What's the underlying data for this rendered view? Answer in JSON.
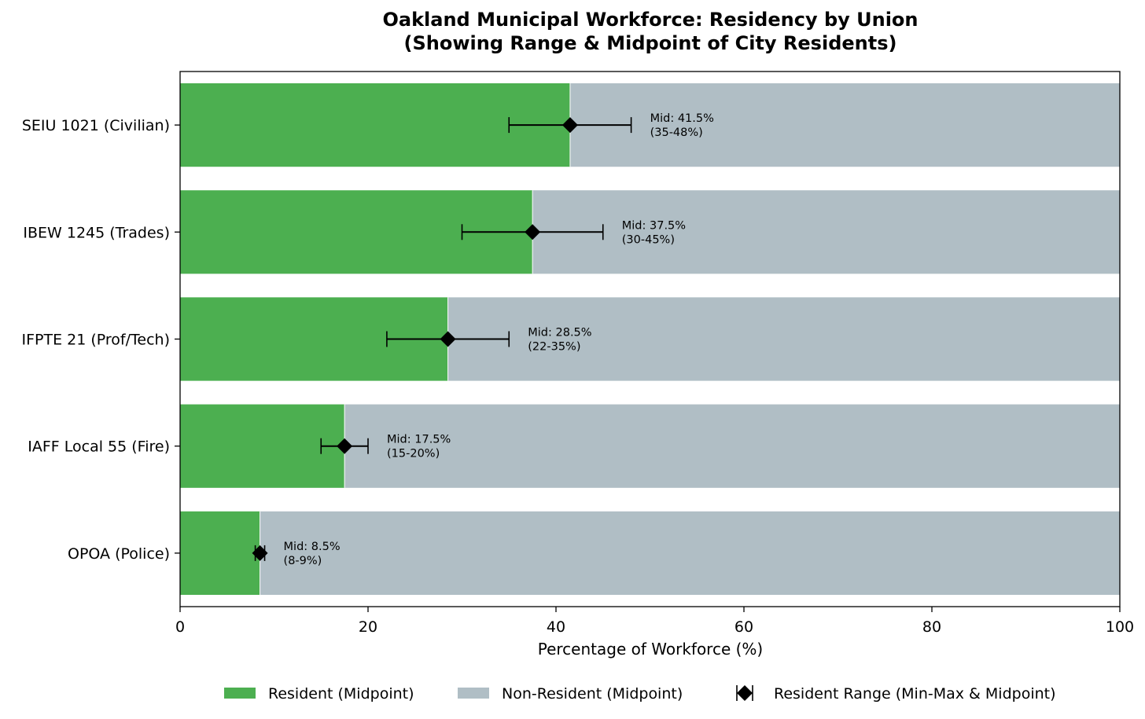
{
  "chart_data": {
    "type": "bar",
    "orientation": "horizontal",
    "stacked": true,
    "title": "Oakland Municipal Workforce: Residency by Union",
    "subtitle": "(Showing Range & Midpoint of City Residents)",
    "xlabel": "Percentage of Workforce (%)",
    "ylabel": "",
    "xlim": [
      0,
      100
    ],
    "xticks": [
      0,
      20,
      40,
      60,
      80,
      100
    ],
    "grid": false,
    "legend_position": "bottom",
    "categories": [
      "SEIU 1021 (Civilian)",
      "IBEW 1245 (Trades)",
      "IFPTE 21 (Prof/Tech)",
      "IAFF Local 55 (Fire)",
      "OPOA (Police)"
    ],
    "series": [
      {
        "name": "Resident (Midpoint)",
        "color": "#4caf50",
        "values": [
          41.5,
          37.5,
          28.5,
          17.5,
          8.5
        ]
      },
      {
        "name": "Non-Resident (Midpoint)",
        "color": "#b0bec5",
        "values": [
          58.5,
          62.5,
          71.5,
          82.5,
          91.5
        ]
      }
    ],
    "range": {
      "name": "Resident Range (Min-Max & Midpoint)",
      "color": "#000000",
      "min": [
        35,
        30,
        22,
        15,
        8
      ],
      "max": [
        48,
        45,
        35,
        20,
        9
      ],
      "mid": [
        41.5,
        37.5,
        28.5,
        17.5,
        8.5
      ]
    },
    "annotations": [
      {
        "line1": "Mid: 41.5%",
        "line2": "(35-48%)"
      },
      {
        "line1": "Mid: 37.5%",
        "line2": "(30-45%)"
      },
      {
        "line1": "Mid: 28.5%",
        "line2": "(22-35%)"
      },
      {
        "line1": "Mid: 17.5%",
        "line2": "(15-20%)"
      },
      {
        "line1": "Mid: 8.5%",
        "line2": "(8-9%)"
      }
    ]
  }
}
